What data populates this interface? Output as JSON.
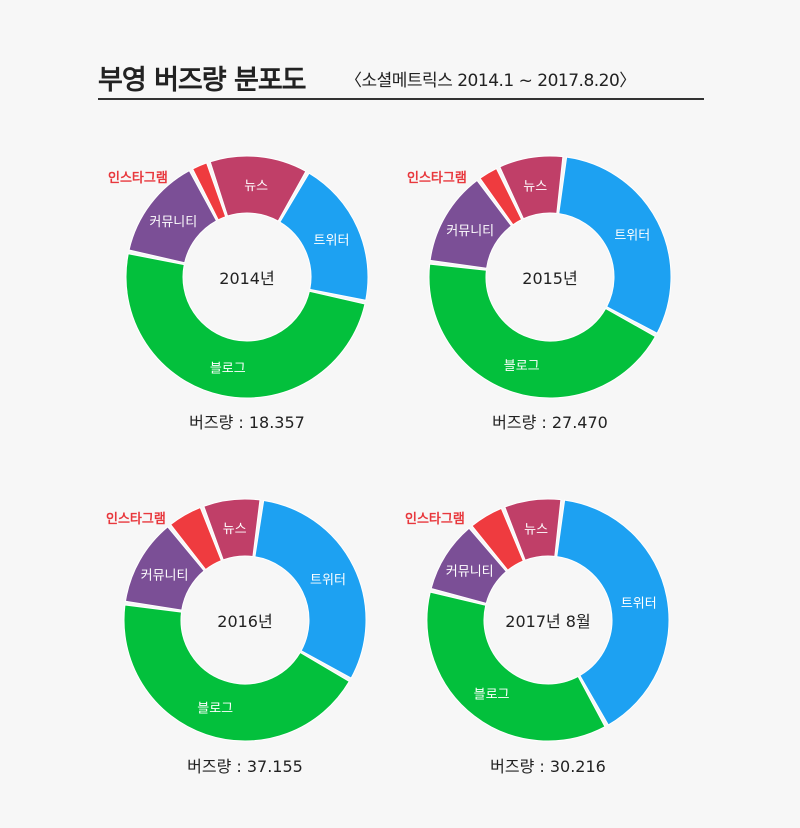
{
  "header": {
    "title": "부영 버즈량 분포도",
    "subtitle": "〈소셜메트릭스 2014.1 ~ 2017.8.20〉"
  },
  "colors": {
    "트위터": "#1da1f2",
    "블로그": "#03c03c",
    "커뮤니티": "#7b4f96",
    "인스타그램": "#ef3b3f",
    "뉴스": "#c03f68"
  },
  "chart_data": [
    {
      "type": "pie",
      "title": "2014년",
      "footer": "버즈량 : 18.357",
      "categories": [
        "트위터",
        "블로그",
        "커뮤니티",
        "인스타그램",
        "뉴스"
      ],
      "values": [
        20,
        50,
        14,
        2.5,
        13.5
      ]
    },
    {
      "type": "pie",
      "title": "2015년",
      "footer": "버즈량 : 27.470",
      "categories": [
        "트위터",
        "블로그",
        "커뮤니티",
        "인스타그램",
        "뉴스"
      ],
      "values": [
        31,
        44,
        13,
        3,
        9
      ]
    },
    {
      "type": "pie",
      "title": "2016년",
      "footer": "버즈량 : 37.155",
      "categories": [
        "트위터",
        "블로그",
        "커뮤니티",
        "인스타그램",
        "뉴스"
      ],
      "values": [
        31,
        44,
        12,
        5,
        8
      ]
    },
    {
      "type": "pie",
      "title": "2017년 8월",
      "footer": "버즈량 : 30.216",
      "categories": [
        "트위터",
        "블로그",
        "커뮤니티",
        "인스타그램",
        "뉴스"
      ],
      "values": [
        40,
        37,
        10,
        5,
        8
      ]
    }
  ]
}
